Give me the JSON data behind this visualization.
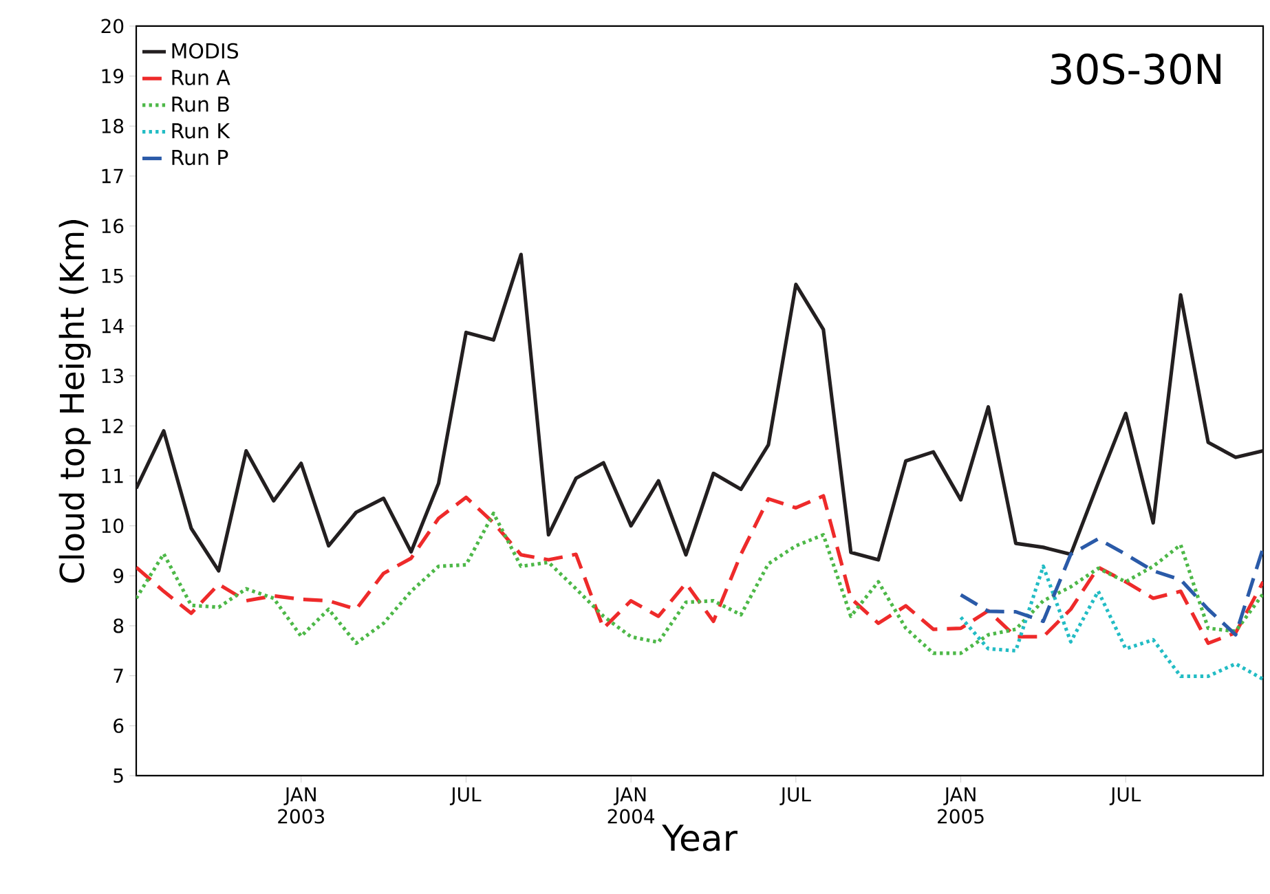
{
  "chart_data": {
    "type": "line",
    "title": "30S-30N",
    "xlabel": "Year",
    "ylabel": "Cloud top Height (Km)",
    "x": [
      "2002-07",
      "2002-08",
      "2002-09",
      "2002-10",
      "2002-11",
      "2002-12",
      "2003-01",
      "2003-02",
      "2003-03",
      "2003-04",
      "2003-05",
      "2003-06",
      "2003-07",
      "2003-08",
      "2003-09",
      "2003-10",
      "2003-11",
      "2003-12",
      "2004-01",
      "2004-02",
      "2004-03",
      "2004-04",
      "2004-05",
      "2004-06",
      "2004-07",
      "2004-08",
      "2004-09",
      "2004-10",
      "2004-11",
      "2004-12",
      "2005-01",
      "2005-02",
      "2005-03",
      "2005-04",
      "2005-05",
      "2005-06",
      "2005-07",
      "2005-08",
      "2005-09",
      "2005-10",
      "2005-11",
      "2005-12"
    ],
    "xlim": [
      "2002-07",
      "2005-12"
    ],
    "xticks": [
      {
        "value": "2003-01",
        "label": "JAN 2003"
      },
      {
        "value": "2003-07",
        "label": "JUL"
      },
      {
        "value": "2004-01",
        "label": "JAN 2004"
      },
      {
        "value": "2004-07",
        "label": "JUL"
      },
      {
        "value": "2005-01",
        "label": "JAN 2005"
      },
      {
        "value": "2005-07",
        "label": "JUL"
      }
    ],
    "ylim": [
      5,
      20
    ],
    "yticks": [
      5,
      6,
      7,
      8,
      9,
      10,
      11,
      12,
      13,
      14,
      15,
      16,
      17,
      18,
      19,
      20
    ],
    "legend": "top left",
    "grid": false,
    "series": [
      {
        "name": "MODIS",
        "color": "#231f20",
        "line_style": "solid",
        "values": [
          10.75,
          11.9,
          9.95,
          9.1,
          11.5,
          10.5,
          11.25,
          9.6,
          10.27,
          10.55,
          9.48,
          10.85,
          13.87,
          13.72,
          15.43,
          9.82,
          10.95,
          11.26,
          10.0,
          10.9,
          9.42,
          11.05,
          10.73,
          11.62,
          14.83,
          13.93,
          9.47,
          9.32,
          11.3,
          11.48,
          10.52,
          12.38,
          9.65,
          9.57,
          9.43,
          10.86,
          12.25,
          10.06,
          14.62,
          11.67,
          11.37,
          11.5
        ]
      },
      {
        "name": "Run A",
        "color": "#ee2a2a",
        "line_style": "dashed",
        "values": [
          9.17,
          8.69,
          8.25,
          8.83,
          8.5,
          8.6,
          8.53,
          8.5,
          8.33,
          9.05,
          9.35,
          10.15,
          10.57,
          10.06,
          9.42,
          9.32,
          9.43,
          7.95,
          8.5,
          8.19,
          8.85,
          8.09,
          9.43,
          10.54,
          10.36,
          10.6,
          8.55,
          8.05,
          8.4,
          7.93,
          7.95,
          8.3,
          7.78,
          7.78,
          8.33,
          9.17,
          8.88,
          8.55,
          8.69,
          7.65,
          7.86,
          8.88
        ]
      },
      {
        "name": "Run B",
        "color": "#4db848",
        "line_style": "dotted",
        "values": [
          8.55,
          9.44,
          8.41,
          8.37,
          8.74,
          8.55,
          7.79,
          8.33,
          7.65,
          8.05,
          8.69,
          9.19,
          9.22,
          10.25,
          9.19,
          9.27,
          8.74,
          8.19,
          7.78,
          7.67,
          8.47,
          8.5,
          8.22,
          9.24,
          9.6,
          9.82,
          8.19,
          8.88,
          7.95,
          7.45,
          7.45,
          7.82,
          7.93,
          8.5,
          8.78,
          9.15,
          8.88,
          9.19,
          9.62,
          7.95,
          7.89,
          8.64
        ]
      },
      {
        "name": "Run K",
        "color": "#22bcc4",
        "line_style": "dotted",
        "values": [
          null,
          null,
          null,
          null,
          null,
          null,
          null,
          null,
          null,
          null,
          null,
          null,
          null,
          null,
          null,
          null,
          null,
          null,
          null,
          null,
          null,
          null,
          null,
          null,
          null,
          null,
          null,
          null,
          null,
          null,
          8.17,
          7.54,
          7.5,
          9.19,
          7.68,
          8.69,
          7.54,
          7.72,
          6.99,
          6.99,
          7.24,
          6.93
        ]
      },
      {
        "name": "Run P",
        "color": "#2a5aa8",
        "line_style": "dashed",
        "values": [
          null,
          null,
          null,
          null,
          null,
          null,
          null,
          null,
          null,
          null,
          null,
          null,
          null,
          null,
          null,
          null,
          null,
          null,
          null,
          null,
          null,
          null,
          null,
          null,
          null,
          null,
          null,
          null,
          null,
          null,
          8.62,
          8.29,
          8.28,
          8.09,
          9.43,
          9.74,
          9.43,
          9.1,
          8.92,
          8.33,
          7.82,
          9.56
        ]
      }
    ]
  }
}
